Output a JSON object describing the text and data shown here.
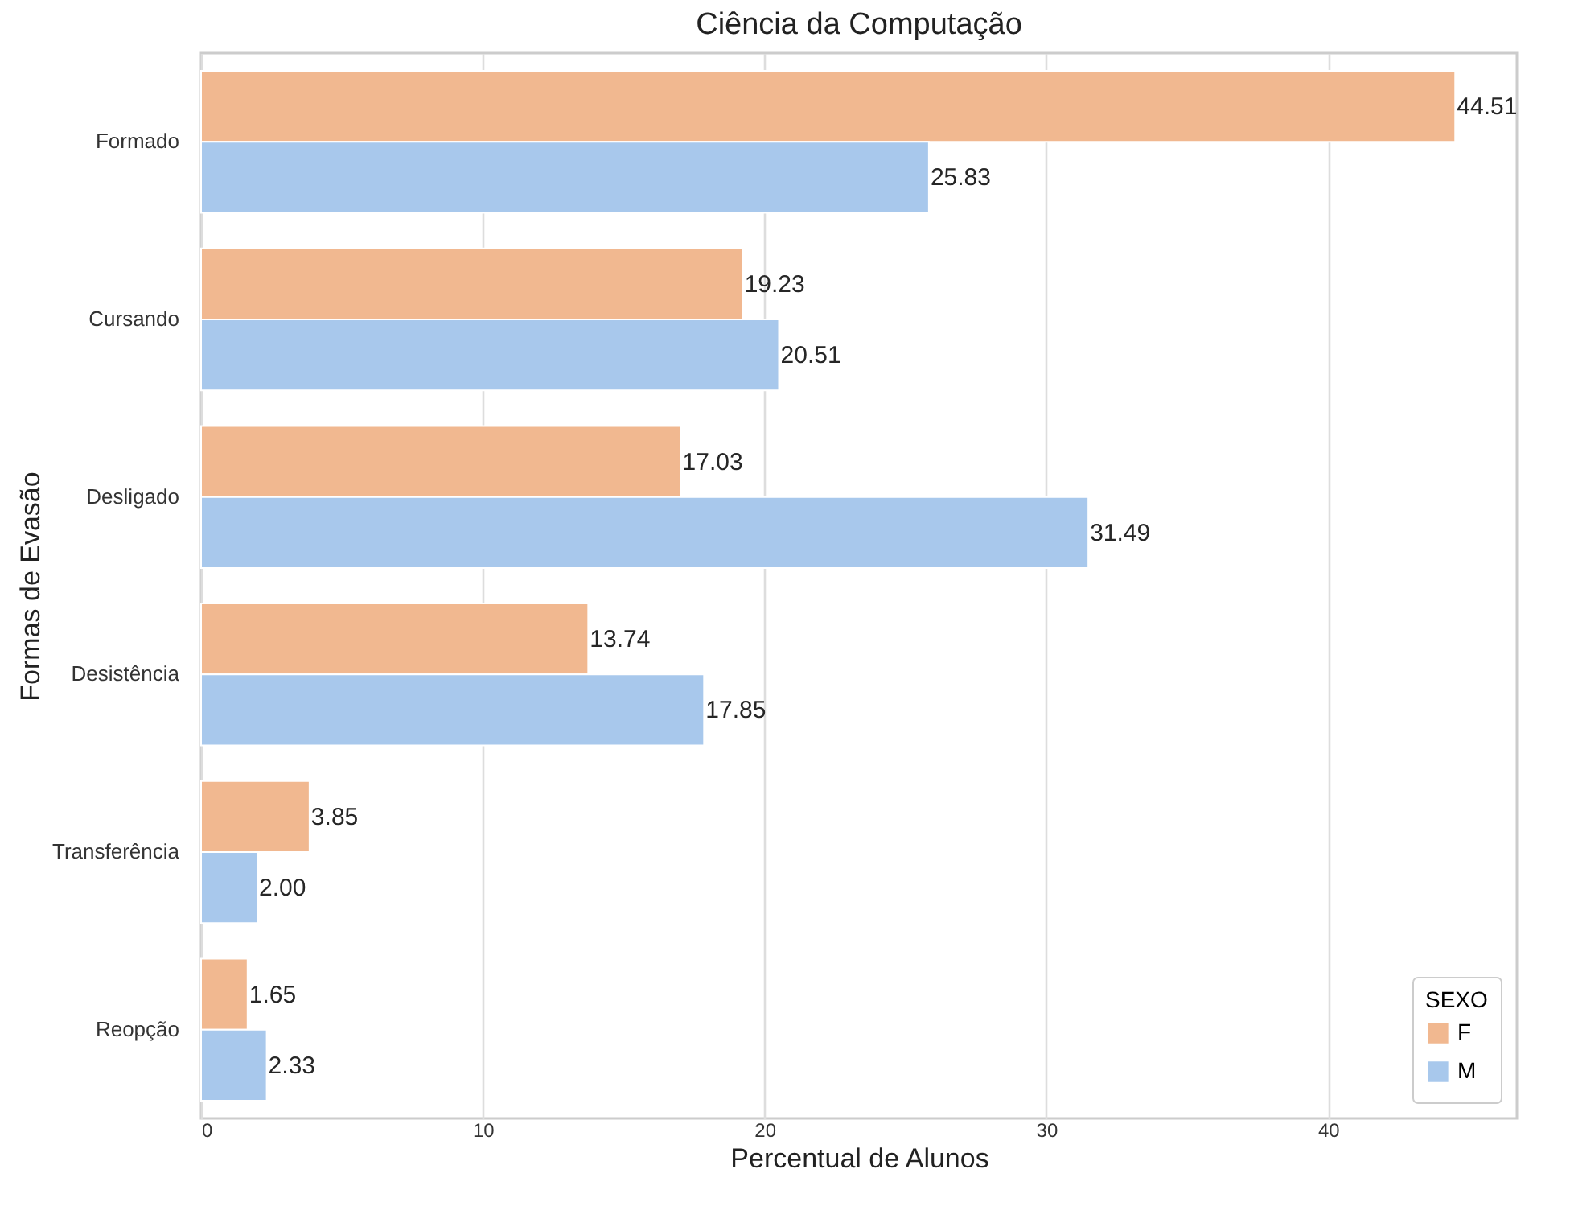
{
  "chart_data": {
    "type": "bar",
    "orientation": "horizontal",
    "title": "Ciência da Computação",
    "xlabel": "Percentual de Alunos",
    "ylabel": "Formas de Evasão",
    "legend_title": "SEXO",
    "legend": "bottom right",
    "grid": "x",
    "categories": [
      "Formado",
      "Cursando",
      "Desligado",
      "Desistência",
      "Transferência",
      "Reopção"
    ],
    "xlim": [
      0,
      46.7
    ],
    "xticks": [
      0,
      10,
      20,
      30,
      40
    ],
    "series": [
      {
        "name": "F",
        "color": "#f1b890",
        "values": [
          44.51,
          19.23,
          17.03,
          13.74,
          3.85,
          1.65
        ],
        "value_labels": [
          "44.51",
          "19.23",
          "17.03",
          "13.74",
          "3.85",
          "1.65"
        ]
      },
      {
        "name": "M",
        "color": "#a8c8ec",
        "values": [
          25.83,
          20.51,
          31.49,
          17.85,
          2.0,
          2.33
        ],
        "value_labels": [
          "25.83",
          "20.51",
          "31.49",
          "17.85",
          "2.00",
          "2.33"
        ]
      }
    ]
  }
}
